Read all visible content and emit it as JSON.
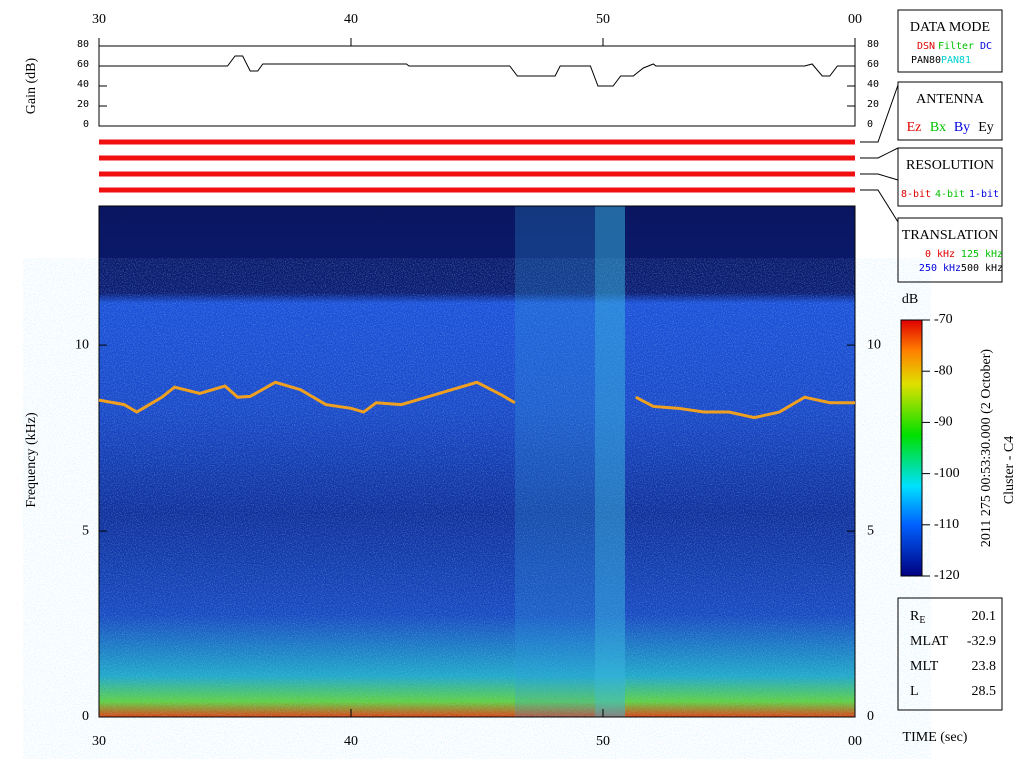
{
  "chart_data": [
    {
      "type": "line",
      "ylabel": "Gain (dB)",
      "xlim": [
        30,
        60
      ],
      "xticks": [
        30,
        40,
        50,
        {
          "value": 60,
          "label": "00"
        }
      ],
      "ylim": [
        0,
        80
      ],
      "yticks": [
        0,
        20,
        40,
        60,
        80
      ],
      "color": "#000000",
      "x": [
        30,
        35.1,
        35.4,
        35.7,
        36,
        36.3,
        36.5,
        42.2,
        42.3,
        46.3,
        46.6,
        48.1,
        48.3,
        49.5,
        49.8,
        50.4,
        50.7,
        51.2,
        51.6,
        52,
        52.1,
        58,
        58.3,
        58.7,
        59,
        59.3,
        60
      ],
      "values": [
        60,
        60,
        70,
        70,
        55,
        55,
        62,
        62,
        60,
        60,
        50,
        50,
        60,
        60,
        40,
        40,
        50,
        50,
        58,
        62,
        60,
        60,
        62,
        50,
        50,
        60,
        60
      ]
    },
    {
      "type": "spectrogram",
      "xlabel": "TIME (sec)",
      "ylabel": "Frequency (kHz)",
      "xlim": [
        30,
        60
      ],
      "xticks": [
        30,
        40,
        50,
        {
          "value": 60,
          "label": "00"
        }
      ],
      "ylim": [
        0,
        13.74
      ],
      "yticks": [
        0,
        5,
        10
      ],
      "color": "#f0a020",
      "x": [
        30,
        31,
        31.5,
        32,
        32.5,
        33,
        34,
        35,
        35.5,
        36,
        37,
        38,
        39,
        40,
        40.5,
        41,
        42,
        43,
        44,
        45,
        46,
        46.5,
        49,
        51.3,
        52,
        53,
        54,
        55,
        56,
        57,
        58,
        59,
        60
      ],
      "values": [
        8.52,
        8.4,
        8.2,
        8.4,
        8.6,
        8.87,
        8.7,
        8.9,
        8.6,
        8.62,
        9.0,
        8.8,
        8.4,
        8.3,
        8.2,
        8.45,
        8.4,
        8.6,
        8.8,
        9.0,
        8.65,
        8.45,
        null,
        8.6,
        8.35,
        8.3,
        8.2,
        8.2,
        8.05,
        8.2,
        8.6,
        8.45,
        8.45
      ],
      "colorbar": {
        "label": "dB",
        "lim": [
          -120,
          -70
        ],
        "ticks": [
          -70,
          -80,
          -90,
          -100,
          -110,
          -120
        ]
      }
    }
  ],
  "date": "2011 275 00:53:30.000 (2 October)",
  "spacecraft": "Cluster - C4",
  "panels": [
    {
      "title": "DATA MODE",
      "items": [
        {
          "text": "DSN",
          "color": "#e00000"
        },
        {
          "text": "Filter",
          "color": "#00c000"
        },
        {
          "text": "DC",
          "color": "#0000e0"
        },
        {
          "text": "PAN80",
          "color": "#000000"
        },
        {
          "text": "PAN81",
          "color": "#00d0d0"
        }
      ]
    },
    {
      "title": "ANTENNA",
      "items": [
        {
          "text": "Ez",
          "color": "#e00000"
        },
        {
          "text": "Bx",
          "color": "#00c000"
        },
        {
          "text": "By",
          "color": "#0000e0"
        },
        {
          "text": "Ey",
          "color": "#000000"
        }
      ]
    },
    {
      "title": "RESOLUTION",
      "items": [
        {
          "text": "8-bit",
          "color": "#e00000"
        },
        {
          "text": "4-bit",
          "color": "#00c000"
        },
        {
          "text": "1-bit",
          "color": "#0000e0"
        }
      ]
    },
    {
      "title": "TRANSLATION",
      "items": [
        {
          "text": "0 kHz",
          "color": "#e00000"
        },
        {
          "text": "125 kHz",
          "color": "#00c000"
        },
        {
          "text": "250 kHz",
          "color": "#0000e0"
        },
        {
          "text": "500 kHz",
          "color": "#000000"
        }
      ]
    }
  ],
  "info": [
    {
      "label": "R",
      "sub": "E",
      "value": 20.1
    },
    {
      "label": "MLAT",
      "value": -32.9
    },
    {
      "label": "MLT",
      "value": 23.8
    },
    {
      "label": "L",
      "value": 28.5
    }
  ]
}
